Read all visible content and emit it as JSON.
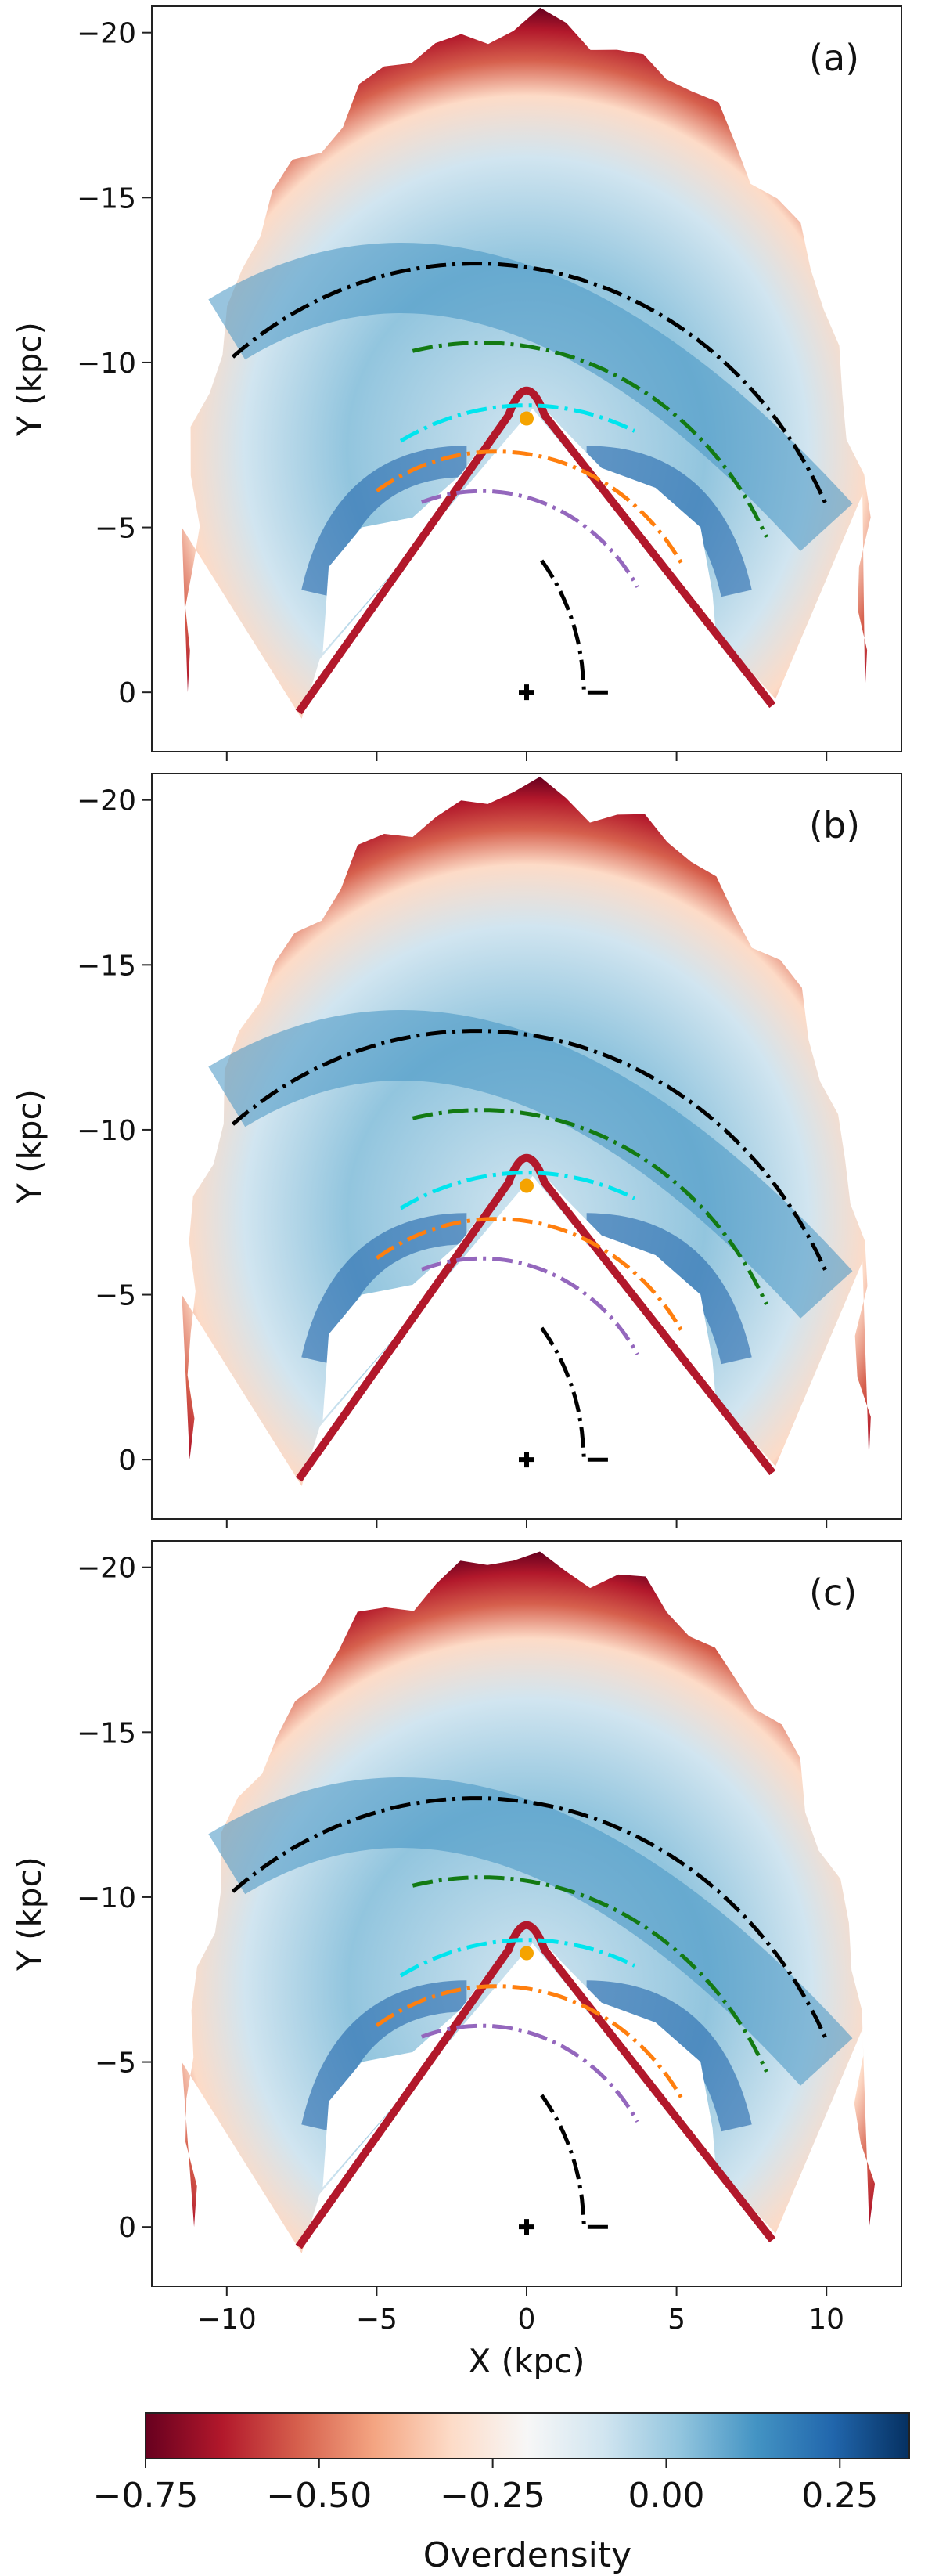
{
  "figure": {
    "colorbar_label": "Overdensity",
    "colorbar_ticks": [
      "−0.75",
      "−0.50",
      "−0.25",
      "0.00",
      "0.25"
    ],
    "colorbar_tick_values": [
      -0.75,
      -0.5,
      -0.25,
      0.0,
      0.25
    ],
    "colorbar_range": [
      -0.75,
      0.35
    ],
    "colormap": [
      "#67001f",
      "#b2182b",
      "#d6604d",
      "#f4a582",
      "#fddbc7",
      "#f7f7f7",
      "#d1e5f0",
      "#92c5de",
      "#4393c3",
      "#2166ac",
      "#053061"
    ],
    "arm_colors": [
      "#000000",
      "#137a13",
      "#00e5ee",
      "#ff7f0e",
      "#9467bd",
      "#000000"
    ]
  },
  "chart_data": [
    {
      "type": "heatmap",
      "panel_label": "(a)",
      "xlabel": "",
      "ylabel": "Y (kpc)",
      "xlim": [
        -12.5,
        12.5
      ],
      "ylim": [
        1.8,
        -20.8
      ],
      "x_ticks": [],
      "y_ticks": [
        "−20",
        "−15",
        "−10",
        "−5",
        "0"
      ],
      "y_tick_values": [
        -20,
        -15,
        -10,
        -5,
        0
      ],
      "sun_marker": [
        0,
        -8.3
      ],
      "galactic_center_marker": [
        0,
        0
      ],
      "spiral_arms": [
        {
          "color": "#000000",
          "radius": 13.0,
          "center_x": -1.7,
          "x_range": [
            -9.8,
            10.0
          ]
        },
        {
          "color": "#137a13",
          "radius": 10.6,
          "center_x": -1.5,
          "x_range": [
            -3.8,
            8.0
          ]
        },
        {
          "color": "#00e5ee",
          "radius": 8.7,
          "center_x": 0.0,
          "x_range": [
            -4.2,
            3.6
          ]
        },
        {
          "color": "#ff7f0e",
          "radius": 7.3,
          "center_x": -1.0,
          "x_range": [
            -5.0,
            5.2
          ]
        },
        {
          "color": "#9467bd",
          "radius": 6.1,
          "center_x": -1.5,
          "x_range": [
            -3.5,
            3.7
          ]
        },
        {
          "color": "#000000",
          "radius": 6.4,
          "center_x": -4.5,
          "x_range": [
            0.5,
            2.8
          ]
        }
      ]
    },
    {
      "type": "heatmap",
      "panel_label": "(b)",
      "xlabel": "",
      "ylabel": "Y (kpc)",
      "xlim": [
        -12.5,
        12.5
      ],
      "ylim": [
        1.8,
        -20.8
      ],
      "x_ticks": [],
      "y_ticks": [
        "−20",
        "−15",
        "−10",
        "−5",
        "0"
      ],
      "y_tick_values": [
        -20,
        -15,
        -10,
        -5,
        0
      ],
      "sun_marker": [
        0,
        -8.3
      ],
      "galactic_center_marker": [
        0,
        0
      ],
      "spiral_arms": [
        {
          "color": "#000000",
          "radius": 13.0,
          "center_x": -1.7,
          "x_range": [
            -9.8,
            10.0
          ]
        },
        {
          "color": "#137a13",
          "radius": 10.6,
          "center_x": -1.5,
          "x_range": [
            -3.8,
            8.0
          ]
        },
        {
          "color": "#00e5ee",
          "radius": 8.7,
          "center_x": 0.0,
          "x_range": [
            -4.2,
            3.6
          ]
        },
        {
          "color": "#ff7f0e",
          "radius": 7.3,
          "center_x": -1.0,
          "x_range": [
            -5.0,
            5.2
          ]
        },
        {
          "color": "#9467bd",
          "radius": 6.1,
          "center_x": -1.5,
          "x_range": [
            -3.5,
            3.7
          ]
        },
        {
          "color": "#000000",
          "radius": 6.4,
          "center_x": -4.5,
          "x_range": [
            0.5,
            2.8
          ]
        }
      ]
    },
    {
      "type": "heatmap",
      "panel_label": "(c)",
      "xlabel": "X (kpc)",
      "ylabel": "Y (kpc)",
      "xlim": [
        -12.5,
        12.5
      ],
      "ylim": [
        1.8,
        -20.8
      ],
      "x_ticks": [
        "−10",
        "−5",
        "0",
        "5",
        "10"
      ],
      "x_tick_values": [
        -10,
        -5,
        0,
        5,
        10
      ],
      "y_ticks": [
        "−20",
        "−15",
        "−10",
        "−5",
        "0"
      ],
      "y_tick_values": [
        -20,
        -15,
        -10,
        -5,
        0
      ],
      "sun_marker": [
        0,
        -8.3
      ],
      "galactic_center_marker": [
        0,
        0
      ],
      "spiral_arms": [
        {
          "color": "#000000",
          "radius": 13.0,
          "center_x": -1.7,
          "x_range": [
            -9.8,
            10.0
          ]
        },
        {
          "color": "#137a13",
          "radius": 10.6,
          "center_x": -1.5,
          "x_range": [
            -3.8,
            8.0
          ]
        },
        {
          "color": "#00e5ee",
          "radius": 8.7,
          "center_x": 0.0,
          "x_range": [
            -4.2,
            3.6
          ]
        },
        {
          "color": "#ff7f0e",
          "radius": 7.3,
          "center_x": -1.0,
          "x_range": [
            -5.0,
            5.2
          ]
        },
        {
          "color": "#9467bd",
          "radius": 6.1,
          "center_x": -1.5,
          "x_range": [
            -3.5,
            3.7
          ]
        },
        {
          "color": "#000000",
          "radius": 6.4,
          "center_x": -4.5,
          "x_range": [
            0.5,
            2.8
          ]
        }
      ]
    }
  ]
}
